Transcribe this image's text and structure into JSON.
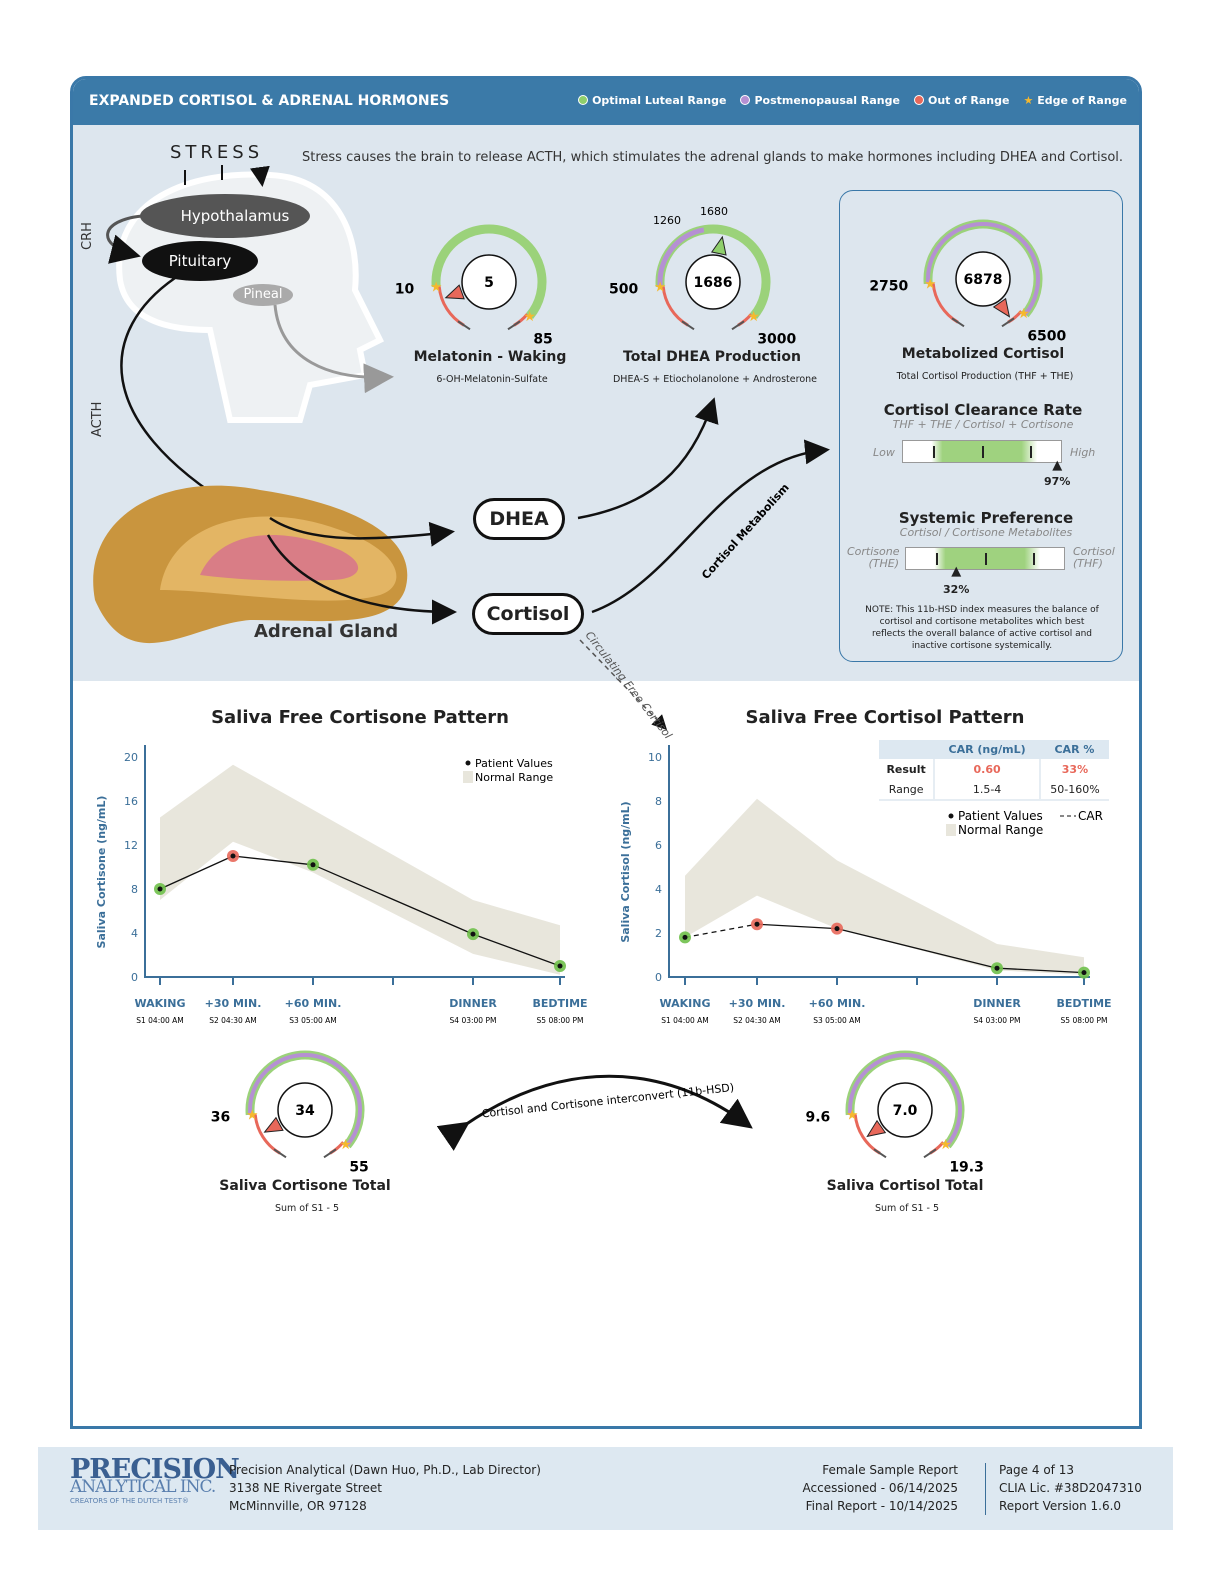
{
  "header": {
    "title": "EXPANDED CORTISOL & ADRENAL HORMONES",
    "legend": [
      {
        "label": "Optimal Luteal Range",
        "color": "#8fcf6c"
      },
      {
        "label": "Postmenopausal Range",
        "color": "#b590d3"
      },
      {
        "label": "Out of Range",
        "color": "#e8685a"
      },
      {
        "label": "Edge of Range",
        "color": "#f5b82e"
      }
    ]
  },
  "diagram": {
    "stress": "STRESS",
    "intro": "Stress causes the brain to release ACTH, which stimulates the adrenal glands to make hormones including DHEA and Cortisol.",
    "hypothalamus": "Hypothalamus",
    "pituitary": "Pituitary",
    "pineal": "Pineal",
    "crh": "CRH",
    "acth": "ACTH",
    "adrenal": "Adrenal Gland",
    "dhea": "DHEA",
    "cortisol": "Cortisol",
    "cortisol_metabolism": "Cortisol Metabolism",
    "circulating": "Circulating Free Cortisol",
    "interconvert": "Cortisol and Cortisone interconvert (11b-HSD)"
  },
  "gauges": {
    "melatonin": {
      "title": "Melatonin - Waking",
      "subtitle": "6-OH-Melatonin-Sulfate",
      "value": "5",
      "low": "10",
      "high": "85",
      "status": "out-of-range",
      "v": 5,
      "lo": 10,
      "hi": 85
    },
    "dhea": {
      "title": "Total DHEA Production",
      "subtitle": "DHEA-S + Etiocholanolone + Androsterone",
      "value": "1686",
      "low": "500",
      "high": "3000",
      "pm_low": "1260",
      "pm_high": "1680",
      "status": "optimal",
      "v": 1686,
      "lo": 500,
      "hi": 3000
    },
    "metabolized": {
      "title": "Metabolized Cortisol",
      "subtitle": "Total Cortisol Production (THF + THE)",
      "value": "6878",
      "low": "2750",
      "high": "6500",
      "status": "out-of-range",
      "v": 6878,
      "lo": 2750,
      "hi": 6500
    },
    "cortisone_total": {
      "title": "Saliva Cortisone Total",
      "subtitle": "Sum of S1 - 5",
      "value": "34",
      "low": "36",
      "high": "55",
      "status": "out-of-range",
      "v": 34,
      "lo": 36,
      "hi": 55
    },
    "cortisol_total": {
      "title": "Saliva Cortisol Total",
      "subtitle": "Sum of S1 - 5",
      "value": "7.0",
      "low": "9.6",
      "high": "19.3",
      "status": "out-of-range",
      "v": 7.0,
      "lo": 9.6,
      "hi": 19.3
    }
  },
  "clearance": {
    "title": "Cortisol Clearance Rate",
    "subtitle": "THF + THE / Cortisol + Cortisone",
    "left": "Low",
    "right": "High",
    "value": "97%",
    "percent": 97
  },
  "systemic": {
    "title": "Systemic Preference",
    "subtitle": "Cortisol / Cortisone Metabolites",
    "left1": "Cortisone",
    "left2": "(THE)",
    "right1": "Cortisol",
    "right2": "(THF)",
    "value": "32%",
    "percent": 32,
    "note": "NOTE: This 11b-HSD index measures the balance of cortisol and cortisone metabolites which best reflects the overall balance of active cortisol and inactive cortisone systemically."
  },
  "chart_data": [
    {
      "type": "line",
      "title": "Saliva Free Cortisone Pattern",
      "ylabel": "Saliva Cortisone (ng/mL)",
      "ylim": [
        0,
        20
      ],
      "yticks": [
        "0",
        "4",
        "8",
        "12",
        "16",
        "20"
      ],
      "categories": [
        "WAKING",
        "+30 MIN.",
        "+60 MIN.",
        "DINNER",
        "BEDTIME"
      ],
      "times": [
        "S1 04:00 AM",
        "S2 04:30 AM",
        "S3 05:00 AM",
        "S4 03:00 PM",
        "S5 08:00 PM"
      ],
      "legend": [
        "Patient Values",
        "Normal Range"
      ],
      "values": [
        8.0,
        11.0,
        10.2,
        3.9,
        1.0
      ],
      "status": [
        "optimal",
        "out-of-range",
        "optimal",
        "optimal",
        "optimal"
      ],
      "range_low": [
        7.0,
        12.3,
        9.5,
        2.1,
        0.2
      ],
      "range_high": [
        14.5,
        19.3,
        15.2,
        7.0,
        4.7
      ]
    },
    {
      "type": "line",
      "title": "Saliva Free Cortisol Pattern",
      "ylabel": "Saliva Cortisol (ng/mL)",
      "ylim": [
        0,
        10
      ],
      "yticks": [
        "0",
        "2",
        "4",
        "6",
        "8",
        "10"
      ],
      "categories": [
        "WAKING",
        "+30 MIN.",
        "+60 MIN.",
        "DINNER",
        "BEDTIME"
      ],
      "times": [
        "S1 04:00 AM",
        "S2 04:30 AM",
        "S3 05:00 AM",
        "S4 03:00 PM",
        "S5 08:00 PM"
      ],
      "legend": [
        "Patient Values",
        "Normal Range",
        "CAR"
      ],
      "values": [
        1.8,
        2.4,
        2.2,
        0.4,
        0.2
      ],
      "status": [
        "optimal",
        "out-of-range",
        "out-of-range",
        "optimal",
        "optimal"
      ],
      "range_low": [
        1.8,
        3.7,
        2.2,
        0.3,
        0.1
      ],
      "range_high": [
        4.6,
        8.1,
        5.3,
        1.5,
        0.9
      ],
      "car_table": {
        "headers": [
          "",
          "CAR (ng/mL)",
          "CAR %"
        ],
        "rows": [
          [
            "Result",
            "0.60",
            "33%"
          ],
          [
            "Range",
            "1.5-4",
            "50-160%"
          ]
        ]
      }
    }
  ],
  "footer": {
    "logo": "PRECISION ANALYTICAL INC. CREATORS OF THE DUTCH TEST",
    "lab": "Precision Analytical (Dawn Huo, Ph.D., Lab Director)",
    "street": "3138 NE Rivergate Street",
    "city": "McMinnville, OR 97128",
    "report": "Female Sample Report",
    "accessioned": "Accessioned - 06/14/2025",
    "final": "Final Report - 10/14/2025",
    "page": "Page 4 of 13",
    "clia": "CLIA Lic. #38D2047310",
    "version": "Report Version 1.6.0"
  },
  "colors": {
    "optimal": "#7dc242",
    "out-of-range": "#e8685a",
    "postmenopausal": "#b590d3",
    "edge": "#f5b82e",
    "accent": "#3b7aa8"
  }
}
